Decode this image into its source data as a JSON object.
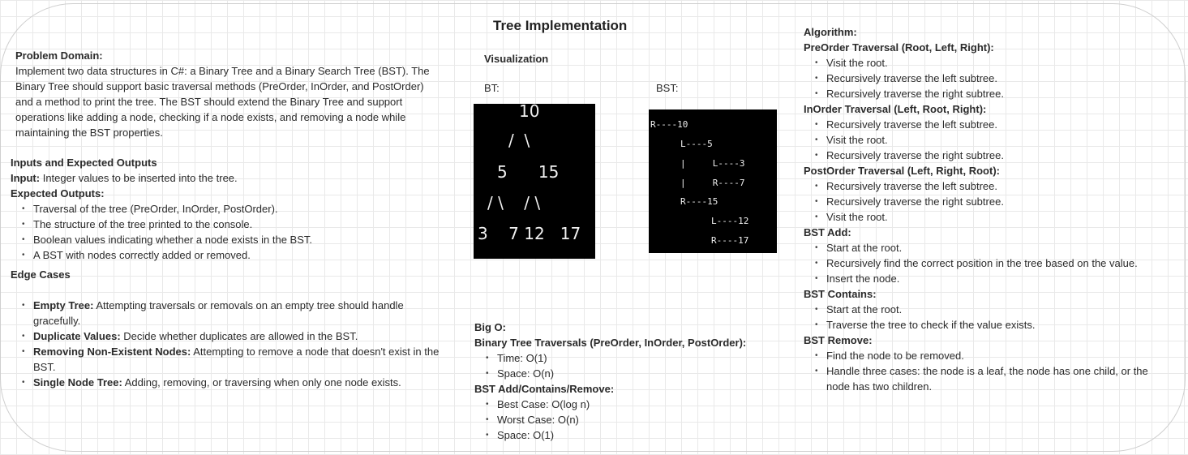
{
  "title": "Tree Implementation",
  "left": {
    "problem_heading": "Problem Domain:",
    "problem_text": "Implement two data structures in C#: a Binary Tree and a Binary Search Tree (BST). The Binary Tree should support basic traversal methods (PreOrder, InOrder, and PostOrder) and a method to print the tree. The BST should extend the Binary Tree and support operations like adding a node, checking if a node exists, and removing a node while maintaining the BST properties.",
    "io_heading": "Inputs and Expected Outputs",
    "input_label": "Input:",
    "input_text": " Integer values to be inserted into the tree.",
    "expected_label": "Expected Outputs:",
    "expected_items": [
      "Traversal of the tree (PreOrder, InOrder, PostOrder).",
      "The structure of the tree printed to the console.",
      "Boolean values indicating whether a node exists in the BST.",
      "A BST with nodes correctly added or removed."
    ],
    "edge_heading": "Edge Cases",
    "edge_items": [
      {
        "label": "Empty Tree:",
        "text": " Attempting traversals or removals on an empty tree should handle gracefully."
      },
      {
        "label": "Duplicate Values:",
        "text": " Decide whether duplicates are allowed in the BST."
      },
      {
        "label": "Removing Non-Existent Nodes:",
        "text": " Attempting to remove a node that doesn't exist in the BST."
      },
      {
        "label": "Single Node Tree:",
        "text": " Adding, removing, or traversing when only one node exists."
      }
    ]
  },
  "middle": {
    "viz_heading": "Visualization",
    "bt_label": "BT:",
    "bst_label": "BST:",
    "bt_lines": [
      "10",
      "/  \\",
      "5      15",
      "/ \\    / \\",
      "3    7 12   17"
    ],
    "bst_lines": [
      "R----10",
      "L----5",
      "|     L----3",
      "|     R----7",
      "R----15",
      "L----12",
      "R----17"
    ],
    "bigo_heading": "Big O:",
    "bt_trav_heading": "Binary Tree Traversals (PreOrder, InOrder, PostOrder):",
    "bt_trav_items": [
      "Time: O(1)",
      "Space: O(n)"
    ],
    "bst_ops_heading": "BST Add/Contains/Remove:",
    "bst_ops_items": [
      "Best Case: O(log n)",
      "Worst Case: O(n)",
      "Space: O(1)"
    ]
  },
  "right": {
    "algo_heading": "Algorithm:",
    "sections": [
      {
        "heading": "PreOrder Traversal (Root, Left, Right):",
        "items": [
          "Visit the root.",
          "Recursively traverse the left subtree.",
          "Recursively traverse the right subtree."
        ]
      },
      {
        "heading": "InOrder Traversal (Left, Root, Right):",
        "items": [
          "Recursively traverse the left subtree.",
          "Visit the root.",
          "Recursively traverse the right subtree."
        ]
      },
      {
        "heading": "PostOrder Traversal (Left, Right, Root):",
        "items": [
          "Recursively traverse the left subtree.",
          "Recursively traverse the right subtree.",
          "Visit the root."
        ]
      },
      {
        "heading": "BST Add:",
        "items": [
          "Start at the root.",
          "Recursively find the correct position in the tree based on the value.",
          "Insert the node."
        ]
      },
      {
        "heading": "BST Contains:",
        "items": [
          "Start at the root.",
          "Traverse the tree to check if the value exists."
        ]
      },
      {
        "heading": "BST Remove:",
        "items": [
          "Find the node to be removed.",
          "Handle three cases: the node is a leaf, the node has one child, or the node has two children."
        ]
      }
    ]
  }
}
